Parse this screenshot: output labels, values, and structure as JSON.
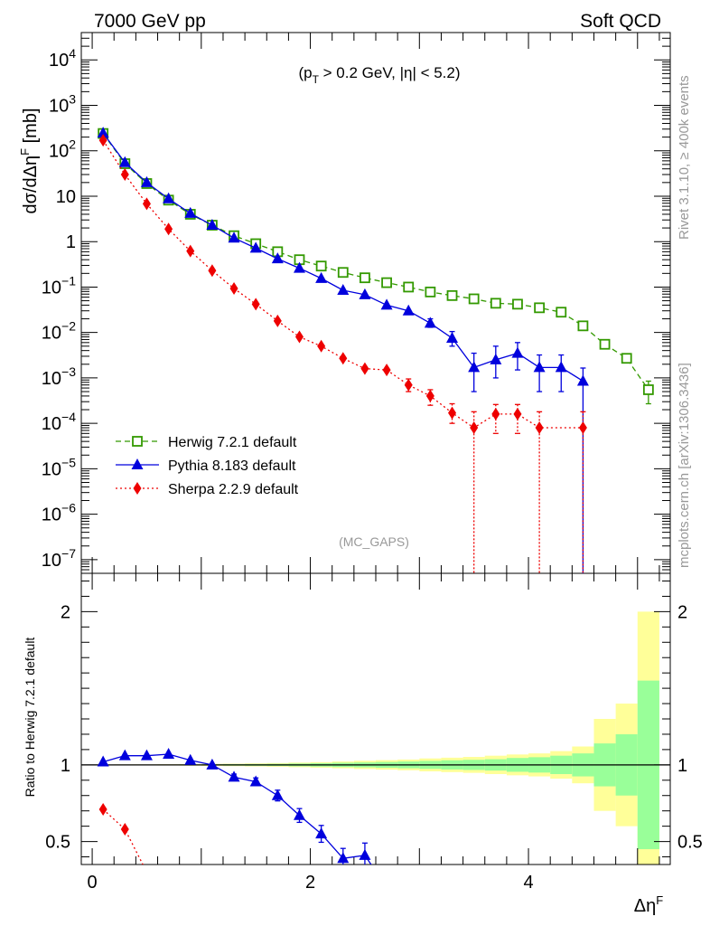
{
  "header": {
    "left": "7000 GeV pp",
    "right": "Soft QCD"
  },
  "cuts_label": "(p_T > 0.2 GeV, |η| < 5.2)",
  "cuts": {
    "open": "(p",
    "sub": "T",
    "rest": " > 0.2 GeV, |η| < 5.2)"
  },
  "analysis_label": "(MC_GAPS)",
  "side_labels": {
    "rivet": "Rivet 3.1.10, ≥ 400k events",
    "source": "mcplots.cern.ch [arXiv:1306.3436]"
  },
  "y_title_main": "dσ/dΔη^F [mb]",
  "y_title_main_parts": {
    "base": "dσ/dΔη",
    "sup": "F",
    "unit": " [mb]"
  },
  "y_title_ratio": "Ratio to Herwig 7.2.1 default",
  "x_title": "Δη^F",
  "x_title_parts": {
    "base": "Δη",
    "sup": "F"
  },
  "colors": {
    "herwig": "#339900",
    "pythia": "#0000dd",
    "sherpa": "#ee0000",
    "band_outer": "#ffff99",
    "band_inner": "#99ff99"
  },
  "chart_data": [
    {
      "type": "line",
      "name": "main",
      "yscale": "log",
      "xlim": [
        -0.1,
        5.3
      ],
      "ylim": [
        5e-08,
        40000
      ],
      "x_ticks": [
        0,
        2,
        4
      ],
      "y_tick_labels": [
        "10^4",
        "10^3",
        "10^2",
        "10",
        "1",
        "10^-1",
        "10^-2",
        "10^-3",
        "10^-4",
        "10^-5",
        "10^-6",
        "10^-7"
      ],
      "x": [
        0.1,
        0.3,
        0.5,
        0.7,
        0.9,
        1.1,
        1.3,
        1.5,
        1.7,
        1.9,
        2.1,
        2.3,
        2.5,
        2.7,
        2.9,
        3.1,
        3.3,
        3.5,
        3.7,
        3.9,
        4.1,
        4.3,
        4.5,
        4.7,
        4.9,
        5.1
      ],
      "series": [
        {
          "name": "Herwig 7.2.1 default",
          "key": "herwig",
          "marker": "open-square",
          "line": "dashed",
          "values": [
            240,
            52,
            19,
            8.2,
            4.0,
            2.3,
            1.35,
            0.9,
            0.6,
            0.4,
            0.29,
            0.21,
            0.16,
            0.125,
            0.1,
            0.078,
            0.065,
            0.055,
            0.044,
            0.042,
            0.035,
            0.028,
            0.014,
            0.0055,
            0.0027,
            0.00055
          ],
          "err_low": [
            0,
            0,
            0,
            0,
            0,
            0,
            0,
            0,
            0,
            0,
            0,
            0,
            0,
            0,
            0,
            0,
            0,
            0,
            0,
            0,
            0,
            0,
            0,
            0,
            0,
            0.00028
          ],
          "err_high": [
            0,
            0,
            0,
            0,
            0,
            0,
            0,
            0,
            0,
            0,
            0,
            0,
            0,
            0,
            0,
            0,
            0,
            0,
            0,
            0,
            0,
            0,
            0,
            0,
            0,
            0.0003
          ]
        },
        {
          "name": "Pythia 8.183 default",
          "key": "pythia",
          "marker": "triangle",
          "line": "solid",
          "values": [
            245,
            55,
            20,
            8.8,
            4.2,
            2.3,
            1.2,
            0.72,
            0.42,
            0.26,
            0.155,
            0.085,
            0.068,
            0.04,
            0.03,
            0.016,
            0.0075,
            0.0017,
            0.0025,
            0.0035,
            0.0017,
            0.0017,
            0.00085,
            null,
            null,
            null
          ],
          "err_low": [
            0,
            0,
            0,
            0,
            0,
            0,
            0,
            0,
            0,
            0,
            0,
            0,
            0,
            0,
            0,
            0.003,
            0.0025,
            0.0012,
            0.0015,
            0.002,
            0.0012,
            0.0012,
            0.00085,
            0,
            0,
            0
          ],
          "err_high": [
            0,
            0,
            0,
            0,
            0,
            0,
            0,
            0,
            0,
            0,
            0,
            0,
            0,
            0,
            0,
            0.004,
            0.003,
            0.0018,
            0.0025,
            0.0025,
            0.0015,
            0.0015,
            0.0008,
            0,
            0,
            0
          ]
        },
        {
          "name": "Sherpa 2.2.9 default",
          "key": "sherpa",
          "marker": "diamond",
          "line": "dotted",
          "values": [
            170,
            30,
            6.8,
            1.9,
            0.62,
            0.23,
            0.093,
            0.042,
            0.018,
            0.008,
            0.005,
            0.0027,
            0.0016,
            0.0015,
            0.0007,
            0.0004,
            0.00017,
            8e-05,
            0.00016,
            0.00016,
            8e-05,
            null,
            8e-05,
            null,
            null,
            null
          ],
          "err_low": [
            0,
            0,
            0,
            0,
            0,
            0,
            0,
            0,
            0,
            0,
            0,
            0,
            0,
            0,
            0.0002,
            0.00015,
            7e-05,
            8e-05,
            0.0001,
            0.0001,
            8e-05,
            0,
            8e-05,
            0,
            0,
            0
          ],
          "err_high": [
            0,
            0,
            0,
            0,
            0,
            0,
            0,
            0,
            0,
            0,
            0,
            0,
            0,
            0,
            0.00025,
            0.00015,
            0.0001,
            0.0001,
            0.0001,
            0.0001,
            0.0001,
            0,
            0.0001,
            0,
            0,
            0
          ]
        }
      ]
    },
    {
      "type": "line",
      "name": "ratio",
      "yscale": "linear",
      "xlim": [
        -0.1,
        5.3
      ],
      "ylim": [
        0.35,
        2.25
      ],
      "x_ticks": [
        0,
        2,
        4
      ],
      "y_ticks": [
        0.5,
        1,
        2
      ],
      "x_edges": [
        0,
        0.2,
        0.4,
        0.6,
        0.8,
        1.0,
        1.2,
        1.4,
        1.6,
        1.8,
        2.0,
        2.2,
        2.4,
        2.6,
        2.8,
        3.0,
        3.2,
        3.4,
        3.6,
        3.8,
        4.0,
        4.2,
        4.4,
        4.6,
        4.8,
        5.0,
        5.2
      ],
      "band_outer": [
        0.002,
        0.003,
        0.003,
        0.004,
        0.005,
        0.007,
        0.008,
        0.01,
        0.012,
        0.015,
        0.018,
        0.022,
        0.027,
        0.031,
        0.035,
        0.042,
        0.047,
        0.052,
        0.06,
        0.068,
        0.075,
        0.09,
        0.12,
        0.3,
        0.4,
        1.0
      ],
      "band_inner": [
        0.001,
        0.0015,
        0.002,
        0.002,
        0.003,
        0.004,
        0.005,
        0.006,
        0.007,
        0.009,
        0.011,
        0.014,
        0.016,
        0.019,
        0.022,
        0.026,
        0.03,
        0.033,
        0.037,
        0.045,
        0.05,
        0.06,
        0.075,
        0.14,
        0.2,
        0.55
      ],
      "x": [
        0.1,
        0.3,
        0.5,
        0.7,
        0.9,
        1.1,
        1.3,
        1.5,
        1.7,
        1.9,
        2.1,
        2.3,
        2.5
      ],
      "series": [
        {
          "name": "Pythia 8.183 default",
          "key": "pythia",
          "marker": "triangle",
          "values": [
            1.02,
            1.06,
            1.06,
            1.07,
            1.03,
            1.0,
            0.92,
            0.89,
            0.8,
            0.67,
            0.55,
            0.39,
            0.41
          ],
          "err": [
            0,
            0,
            0,
            0,
            0,
            0,
            0.02,
            0.025,
            0.035,
            0.045,
            0.055,
            0.065,
            0.08
          ]
        },
        {
          "name": "Sherpa 2.2.9 default",
          "key": "sherpa",
          "marker": "diamond",
          "values": [
            0.71,
            0.58,
            null,
            null,
            null,
            null,
            null,
            null,
            null,
            null,
            null,
            null,
            null
          ],
          "err": [
            0,
            0,
            0,
            0,
            0,
            0,
            0,
            0,
            0,
            0,
            0,
            0,
            0
          ]
        }
      ]
    }
  ]
}
